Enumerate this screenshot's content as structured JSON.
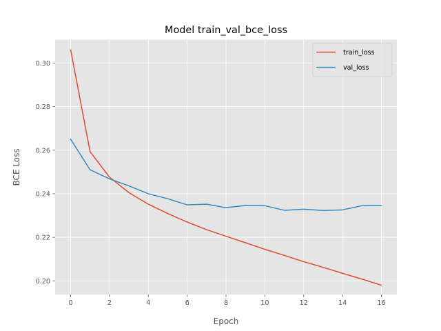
{
  "chart_data": {
    "type": "line",
    "title": "Model train_val_bce_loss",
    "xlabel": "Epoch",
    "ylabel": "BCE Loss",
    "xlim": [
      -0.8,
      16.8
    ],
    "ylim": [
      0.1937,
      0.3107
    ],
    "xticks": [
      0,
      2,
      4,
      6,
      8,
      10,
      12,
      14,
      16
    ],
    "yticks": [
      0.2,
      0.22,
      0.24,
      0.26,
      0.28,
      0.3
    ],
    "ytick_labels": [
      "0.20",
      "0.22",
      "0.24",
      "0.26",
      "0.28",
      "0.30"
    ],
    "grid": true,
    "legend_position": "top-right",
    "x": [
      0,
      1,
      2,
      3,
      4,
      5,
      6,
      7,
      8,
      9,
      10,
      11,
      12,
      13,
      14,
      15,
      16
    ],
    "series": [
      {
        "name": "train_loss",
        "color": "#E24A33",
        "values": [
          0.306,
          0.2593,
          0.2476,
          0.2405,
          0.2352,
          0.2309,
          0.227,
          0.2235,
          0.2205,
          0.2175,
          0.2145,
          0.2117,
          0.2088,
          0.2062,
          0.2035,
          0.2008,
          0.198
        ]
      },
      {
        "name": "val_loss",
        "color": "#348ABD",
        "values": [
          0.265,
          0.251,
          0.2468,
          0.2436,
          0.24,
          0.2377,
          0.2349,
          0.2352,
          0.2336,
          0.2346,
          0.2345,
          0.2324,
          0.2329,
          0.2323,
          0.2326,
          0.2345,
          0.2346
        ]
      }
    ]
  }
}
